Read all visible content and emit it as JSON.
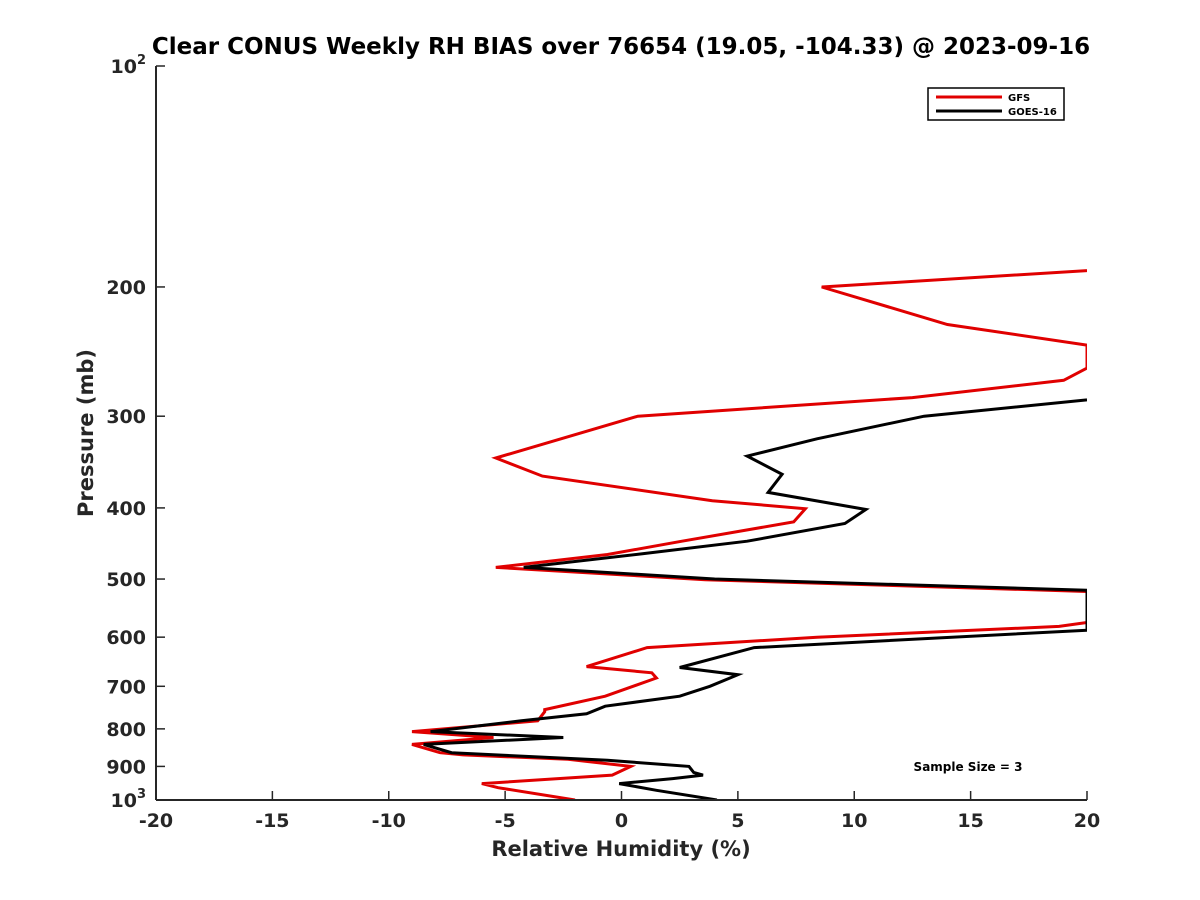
{
  "chart_data": {
    "type": "line",
    "title": "Clear CONUS Weekly RH BIAS over 76654 (19.05, -104.33) @ 2023-09-16",
    "xlabel": "Relative Humidity (%)",
    "ylabel": "Pressure (mb)",
    "xlim": [
      -20,
      20
    ],
    "ylim": [
      1000,
      100
    ],
    "y_scale": "log",
    "y_reversed": true,
    "grid": false,
    "legend_position": "top-right",
    "x_ticks": [
      {
        "value": -20,
        "label": "-20"
      },
      {
        "value": -15,
        "label": "-15"
      },
      {
        "value": -10,
        "label": "-10"
      },
      {
        "value": -5,
        "label": "-5"
      },
      {
        "value": 0,
        "label": "0"
      },
      {
        "value": 5,
        "label": "5"
      },
      {
        "value": 10,
        "label": "10"
      },
      {
        "value": 15,
        "label": "15"
      },
      {
        "value": 20,
        "label": "20"
      }
    ],
    "y_ticks": [
      {
        "value": 100,
        "base": "10",
        "exp": "2"
      },
      {
        "value": 200,
        "base": "200",
        "exp": ""
      },
      {
        "value": 300,
        "base": "300",
        "exp": ""
      },
      {
        "value": 400,
        "base": "400",
        "exp": ""
      },
      {
        "value": 500,
        "base": "500",
        "exp": ""
      },
      {
        "value": 600,
        "base": "600",
        "exp": ""
      },
      {
        "value": 700,
        "base": "700",
        "exp": ""
      },
      {
        "value": 800,
        "base": "800",
        "exp": ""
      },
      {
        "value": 900,
        "base": "900",
        "exp": ""
      },
      {
        "value": 1000,
        "base": "10",
        "exp": "3"
      }
    ],
    "series": [
      {
        "name": "GFS",
        "color": "#e00000",
        "points": [
          {
            "x": 20,
            "y": 190
          },
          {
            "x": 8.6,
            "y": 200
          },
          {
            "x": 14,
            "y": 225
          },
          {
            "x": 20,
            "y": 240
          },
          {
            "x": 20,
            "y": 258
          },
          {
            "x": 19,
            "y": 268
          },
          {
            "x": 12.5,
            "y": 283
          },
          {
            "x": 0.7,
            "y": 300
          },
          {
            "x": -5.4,
            "y": 342
          },
          {
            "x": -3.4,
            "y": 362
          },
          {
            "x": 3.9,
            "y": 391
          },
          {
            "x": 7.9,
            "y": 401
          },
          {
            "x": 7.4,
            "y": 418
          },
          {
            "x": 2.6,
            "y": 444
          },
          {
            "x": -0.6,
            "y": 463
          },
          {
            "x": -5.4,
            "y": 482
          },
          {
            "x": 3.6,
            "y": 501
          },
          {
            "x": 20,
            "y": 520
          },
          {
            "x": 20,
            "y": 573
          },
          {
            "x": 18.8,
            "y": 580
          },
          {
            "x": 8.4,
            "y": 600
          },
          {
            "x": 1.1,
            "y": 620
          },
          {
            "x": -1.5,
            "y": 658
          },
          {
            "x": 1.3,
            "y": 671
          },
          {
            "x": 1.5,
            "y": 682
          },
          {
            "x": -0.7,
            "y": 722
          },
          {
            "x": -3.3,
            "y": 753
          },
          {
            "x": -3.3,
            "y": 758
          },
          {
            "x": -3.6,
            "y": 780
          },
          {
            "x": -9,
            "y": 807
          },
          {
            "x": -5.5,
            "y": 822
          },
          {
            "x": -9,
            "y": 840
          },
          {
            "x": -7.8,
            "y": 862
          },
          {
            "x": -6.8,
            "y": 868
          },
          {
            "x": -2.3,
            "y": 880
          },
          {
            "x": 0.4,
            "y": 900
          },
          {
            "x": -0.4,
            "y": 925
          },
          {
            "x": -6,
            "y": 950
          },
          {
            "x": -5.3,
            "y": 962
          },
          {
            "x": -2,
            "y": 1000
          }
        ]
      },
      {
        "name": "GOES-16",
        "color": "#000000",
        "points": [
          {
            "x": 20,
            "y": 285
          },
          {
            "x": 13,
            "y": 300
          },
          {
            "x": 8.4,
            "y": 322
          },
          {
            "x": 5.4,
            "y": 340
          },
          {
            "x": 6.9,
            "y": 360
          },
          {
            "x": 6.3,
            "y": 381
          },
          {
            "x": 10.5,
            "y": 402
          },
          {
            "x": 9.6,
            "y": 420
          },
          {
            "x": 5.4,
            "y": 444
          },
          {
            "x": 0.9,
            "y": 462
          },
          {
            "x": -4.2,
            "y": 482
          },
          {
            "x": 4,
            "y": 500
          },
          {
            "x": 20,
            "y": 518
          },
          {
            "x": 20,
            "y": 587
          },
          {
            "x": 5.7,
            "y": 620
          },
          {
            "x": 2.5,
            "y": 660
          },
          {
            "x": 5,
            "y": 675
          },
          {
            "x": 3.8,
            "y": 700
          },
          {
            "x": 2.5,
            "y": 722
          },
          {
            "x": -0.7,
            "y": 745
          },
          {
            "x": -1.5,
            "y": 763
          },
          {
            "x": -4.3,
            "y": 780
          },
          {
            "x": -8.2,
            "y": 807
          },
          {
            "x": -2.5,
            "y": 822
          },
          {
            "x": -8.5,
            "y": 840
          },
          {
            "x": -7.3,
            "y": 862
          },
          {
            "x": -6.4,
            "y": 865
          },
          {
            "x": -0.6,
            "y": 883
          },
          {
            "x": 2.9,
            "y": 900
          },
          {
            "x": 3.1,
            "y": 917
          },
          {
            "x": 3.5,
            "y": 925
          },
          {
            "x": 2.2,
            "y": 935
          },
          {
            "x": -0.1,
            "y": 950
          },
          {
            "x": 1.5,
            "y": 970
          },
          {
            "x": 4.1,
            "y": 1000
          }
        ]
      }
    ],
    "annotation": "Sample Size = 3"
  }
}
